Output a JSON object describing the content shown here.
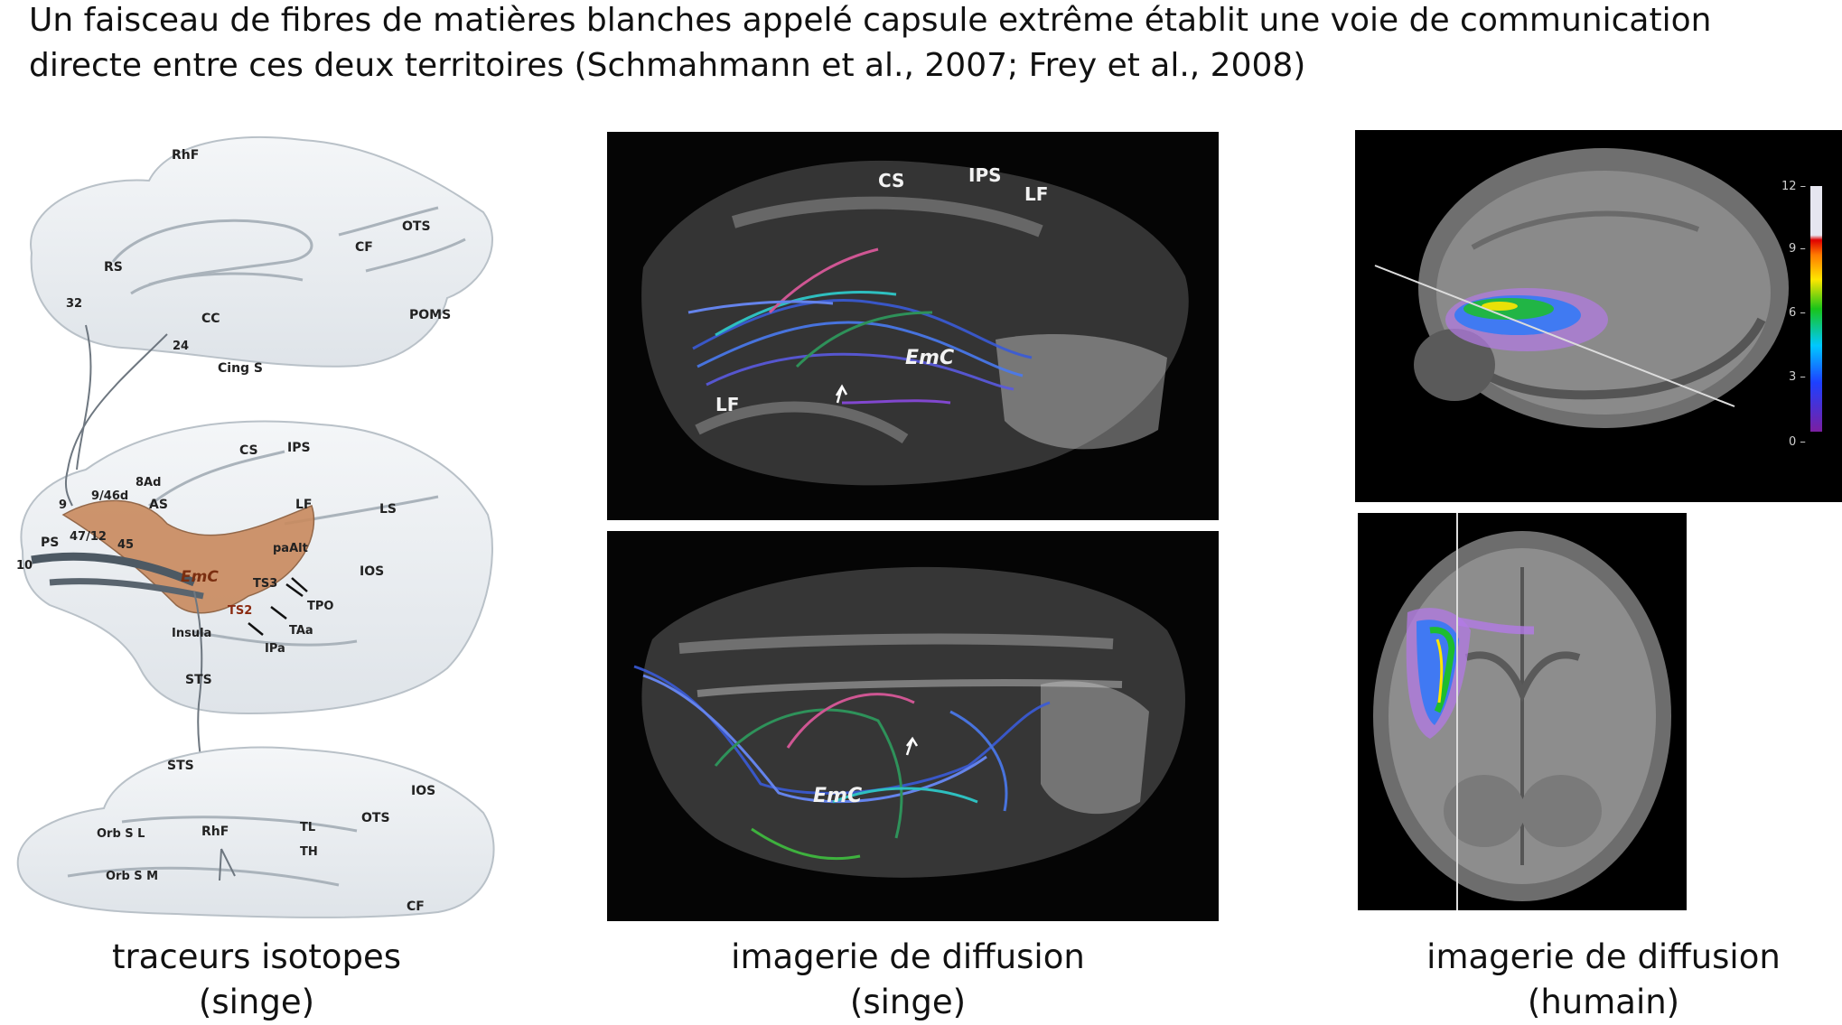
{
  "header": {
    "title_line1": "Un faisceau de fibres de matières blanches appelé capsule extrême établit une voie de communication",
    "title_line2": "directe entre ces deux territoires (Schmahmann et al., 2007; Frey et al., 2008)"
  },
  "panels": {
    "left": {
      "caption_line1": "traceurs isotopes",
      "caption_line2": "(singe)",
      "labels_medial": [
        "RhF",
        "OTS",
        "CF",
        "RS",
        "32",
        "CC",
        "POMS",
        "24",
        "Cing S"
      ],
      "labels_lateral": [
        "CS",
        "IPS",
        "8Ad",
        "9/46d",
        "9",
        "AS",
        "LF",
        "LS",
        "PS",
        "47/12",
        "45",
        "paAlt",
        "10",
        "EmC",
        "TS3",
        "IOS",
        "TPO",
        "TS2",
        "TAa",
        "Insula",
        "IPa",
        "STS"
      ],
      "labels_ventral": [
        "STS",
        "IOS",
        "RhF",
        "OTS",
        "TL",
        "Orb S L",
        "TH",
        "Orb S M",
        "CF"
      ]
    },
    "middle": {
      "caption_line1": "imagerie de diffusion",
      "caption_line2": "(singe)",
      "top_labels": [
        "CS",
        "IPS",
        "LF",
        "EmC",
        "LF"
      ],
      "bottom_labels": [
        "EmC"
      ]
    },
    "right": {
      "caption_line1": "imagerie de diffusion",
      "caption_line2": "(humain)",
      "scale_ticks": [
        "12 –",
        "9 –",
        "6 –",
        "3 –",
        "0 –"
      ]
    }
  },
  "colors": {
    "fibre_blue": "#3a5bd8",
    "tract_brown": "#c98a5e",
    "colorbar": [
      "#7b1fa2",
      "#1e40ff",
      "#00c8ff",
      "#19c419",
      "#ffe600",
      "#ff7a00",
      "#e00000",
      "#e6e6f0"
    ]
  }
}
